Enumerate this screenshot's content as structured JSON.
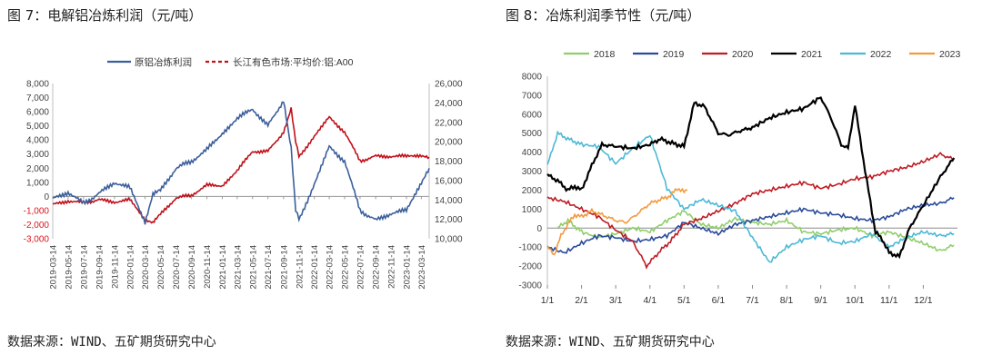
{
  "left": {
    "title": "图 7：电解铝冶炼利润（元/吨）",
    "source": "数据来源：WIND、五矿期货研究中心"
  },
  "right": {
    "title": "图 8：冶炼利润季节性（元/吨）",
    "source": "数据来源：WIND、五矿期货研究中心"
  },
  "colors": {
    "profit": "#3b5f9b",
    "price": "#c0101a",
    "y2018": "#8fce6a",
    "y2019": "#2a4a9b",
    "y2020": "#c01a22",
    "y2021": "#000000",
    "y2022": "#4cb8d6",
    "y2023": "#f29a3d",
    "axis_red": "#d9161f"
  },
  "chart_data": [
    {
      "type": "line",
      "title": "",
      "xlabel": "",
      "ylabel": "",
      "y_left_lim": [
        -3000,
        8000
      ],
      "y_left_ticks": [
        -3000,
        -2000,
        -1000,
        0,
        1000,
        2000,
        3000,
        4000,
        5000,
        6000,
        7000,
        8000
      ],
      "y_left_tick_labels": [
        "-3,000",
        "-2,000",
        "-1,000",
        "0",
        "1,000",
        "2,000",
        "3,000",
        "4,000",
        "5,000",
        "6,000",
        "7,000",
        "8,000"
      ],
      "y_right_lim": [
        10000,
        26000
      ],
      "y_right_ticks": [
        10000,
        12000,
        14000,
        16000,
        18000,
        20000,
        22000,
        24000,
        26000
      ],
      "y_right_tick_labels": [
        "10,000",
        "12,000",
        "14,000",
        "16,000",
        "18,000",
        "20,000",
        "22,000",
        "24,000",
        "26,000"
      ],
      "legend_position": "top",
      "grid": false,
      "x_tick_labels": [
        "2019-03-14",
        "2019-05-14",
        "2019-07-14",
        "2019-09-14",
        "2019-11-14",
        "2020-01-14",
        "2020-03-14",
        "2020-05-14",
        "2020-07-14",
        "2020-09-14",
        "2020-11-14",
        "2021-01-14",
        "2021-03-14",
        "2021-05-14",
        "2021-07-14",
        "2021-09-14",
        "2021-11-14",
        "2022-01-14",
        "2022-03-14",
        "2022-05-14",
        "2022-07-14",
        "2022-09-14",
        "2022-11-14",
        "2023-01-14",
        "2023-03-14"
      ],
      "series": [
        {
          "name": "原铝冶炼利润",
          "axis": "left",
          "style": "solid",
          "x": [
            "2019-03-14",
            "2019-05-14",
            "2019-07-14",
            "2019-09-14",
            "2019-11-14",
            "2020-01-14",
            "2020-03-14",
            "2020-04-14",
            "2020-05-14",
            "2020-07-14",
            "2020-09-14",
            "2020-11-14",
            "2021-01-14",
            "2021-03-14",
            "2021-05-14",
            "2021-07-14",
            "2021-09-14",
            "2021-10-14",
            "2021-11-01",
            "2021-11-14",
            "2022-01-14",
            "2022-03-14",
            "2022-05-14",
            "2022-07-14",
            "2022-09-14",
            "2022-11-14",
            "2023-01-14",
            "2023-03-14",
            "2023-04-14"
          ],
          "values": [
            -200,
            300,
            -500,
            200,
            1000,
            600,
            -1800,
            200,
            400,
            2000,
            2500,
            3300,
            4500,
            5500,
            6200,
            5000,
            6800,
            3500,
            -1000,
            -1600,
            800,
            3500,
            2500,
            -1000,
            -1700,
            -1200,
            -1000,
            1000,
            2000
          ]
        },
        {
          "name": "长江有色市场:平均价:铝:A00",
          "axis": "right",
          "style": "dashed",
          "x": [
            "2019-03-14",
            "2019-05-14",
            "2019-07-14",
            "2019-09-14",
            "2019-11-14",
            "2020-01-14",
            "2020-03-14",
            "2020-04-14",
            "2020-05-14",
            "2020-07-14",
            "2020-09-14",
            "2020-11-14",
            "2021-01-14",
            "2021-03-14",
            "2021-05-14",
            "2021-07-14",
            "2021-09-14",
            "2021-10-14",
            "2021-11-01",
            "2021-11-14",
            "2022-01-14",
            "2022-03-14",
            "2022-05-14",
            "2022-07-14",
            "2022-09-14",
            "2022-11-14",
            "2023-01-14",
            "2023-03-14",
            "2023-04-14"
          ],
          "values": [
            13500,
            13900,
            13700,
            14000,
            13800,
            14000,
            12000,
            11700,
            12500,
            14200,
            14500,
            15500,
            15500,
            17000,
            19000,
            19000,
            21000,
            23500,
            20000,
            18500,
            20500,
            22500,
            21000,
            18000,
            18500,
            18500,
            18500,
            18600,
            18400
          ]
        }
      ]
    },
    {
      "type": "line",
      "title": "",
      "xlabel": "",
      "ylabel": "",
      "ylim": [
        -3000,
        8000
      ],
      "y_ticks": [
        -3000,
        -2000,
        -1000,
        0,
        1000,
        2000,
        3000,
        4000,
        5000,
        6000,
        7000,
        8000
      ],
      "x_lim": [
        1,
        13
      ],
      "x_ticks": [
        1,
        2,
        3,
        4,
        5,
        6,
        7,
        8,
        9,
        10,
        11,
        12
      ],
      "categories": [
        "1/1",
        "2/1",
        "3/1",
        "4/1",
        "5/1",
        "6/1",
        "7/1",
        "8/1",
        "9/1",
        "10/1",
        "11/1",
        "12/1"
      ],
      "legend_position": "top",
      "grid": false,
      "series": [
        {
          "name": "2018",
          "x": [
            1.3,
            1.6,
            2.0,
            2.5,
            3.0,
            3.5,
            4.0,
            4.5,
            5.0,
            5.5,
            6.0,
            6.5,
            7.0,
            7.5,
            8.0,
            8.5,
            9.0,
            9.5,
            10.0,
            10.5,
            11.0,
            11.5,
            12.0,
            12.5,
            12.9
          ],
          "values": [
            0,
            400,
            -200,
            -500,
            -300,
            0,
            -200,
            400,
            900,
            200,
            0,
            500,
            300,
            200,
            400,
            -200,
            -300,
            -100,
            0,
            -400,
            -200,
            -500,
            -800,
            -1200,
            -900
          ]
        },
        {
          "name": "2019",
          "x": [
            1.0,
            1.5,
            2.0,
            2.5,
            3.0,
            3.5,
            4.0,
            4.5,
            5.0,
            5.5,
            6.0,
            6.5,
            7.0,
            7.5,
            8.0,
            8.5,
            9.0,
            9.5,
            10.0,
            10.5,
            11.0,
            11.5,
            12.0,
            12.5,
            12.9
          ],
          "values": [
            -1000,
            -1300,
            -800,
            -400,
            -500,
            -700,
            -600,
            -400,
            300,
            0,
            -300,
            200,
            400,
            600,
            800,
            1000,
            800,
            700,
            500,
            400,
            600,
            1000,
            1200,
            1300,
            1600
          ]
        },
        {
          "name": "2020",
          "x": [
            1.0,
            1.5,
            2.0,
            2.5,
            3.0,
            3.5,
            3.9,
            4.3,
            4.6,
            5.0,
            5.5,
            6.0,
            6.5,
            7.0,
            7.5,
            8.0,
            8.5,
            9.0,
            9.5,
            10.0,
            10.5,
            11.0,
            11.5,
            12.0,
            12.5,
            12.9
          ],
          "values": [
            1600,
            1400,
            1000,
            600,
            -100,
            -700,
            -2000,
            -1200,
            -700,
            200,
            500,
            900,
            1300,
            1800,
            2000,
            2200,
            2400,
            2100,
            2300,
            2600,
            2700,
            3000,
            3200,
            3500,
            3900,
            3600
          ]
        },
        {
          "name": "2021",
          "x": [
            1.0,
            1.3,
            1.6,
            1.8,
            2.0,
            2.3,
            2.6,
            3.0,
            3.5,
            4.0,
            4.3,
            4.6,
            5.0,
            5.3,
            5.6,
            6.0,
            6.3,
            6.6,
            7.0,
            7.5,
            8.0,
            8.5,
            9.0,
            9.3,
            9.6,
            9.8,
            10.0,
            10.3,
            10.6,
            10.8,
            11.0,
            11.3,
            11.6,
            12.0,
            12.5,
            12.9
          ],
          "values": [
            2800,
            2500,
            2000,
            2200,
            2000,
            3300,
            4400,
            4300,
            4200,
            4400,
            4700,
            4500,
            4300,
            6600,
            6400,
            5000,
            4900,
            5100,
            5300,
            5800,
            6100,
            6300,
            6900,
            5800,
            4400,
            4200,
            6500,
            3000,
            -200,
            -600,
            -1300,
            -1500,
            0,
            1200,
            2700,
            3700
          ]
        },
        {
          "name": "2022",
          "x": [
            1.0,
            1.3,
            1.6,
            2.0,
            2.5,
            3.0,
            3.5,
            4.0,
            4.5,
            5.0,
            5.5,
            6.0,
            6.5,
            7.0,
            7.5,
            8.0,
            8.5,
            9.0,
            9.5,
            10.0,
            10.5,
            11.0,
            11.5,
            12.0,
            12.5,
            12.9
          ],
          "values": [
            3300,
            5000,
            4700,
            4400,
            4300,
            3400,
            4200,
            4900,
            2100,
            1000,
            1500,
            1200,
            900,
            -500,
            -1800,
            -1000,
            -600,
            -400,
            -800,
            -700,
            -300,
            -1000,
            -500,
            -200,
            -400,
            -300
          ]
        },
        {
          "name": "2023",
          "x": [
            1.0,
            1.2,
            1.4,
            1.6,
            1.8,
            2.0,
            2.3,
            2.6,
            3.0,
            3.3,
            3.6,
            4.0,
            4.3,
            4.6,
            4.8,
            5.0,
            5.1
          ],
          "values": [
            -1000,
            -1400,
            -400,
            200,
            700,
            600,
            900,
            700,
            400,
            300,
            700,
            1300,
            1500,
            1700,
            2100,
            1900,
            2000
          ]
        }
      ]
    }
  ]
}
